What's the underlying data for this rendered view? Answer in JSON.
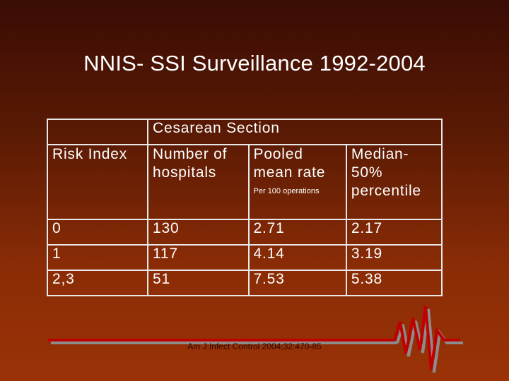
{
  "title": "NNIS- SSI Surveillance 1992-2004",
  "table": {
    "span_header": "Cesarean Section",
    "headers": {
      "risk_index": "Risk Index",
      "hospitals_1": "Number of",
      "hospitals_2": "hospitals",
      "pooled_1": "Pooled",
      "pooled_2": "mean rate",
      "pooled_note": "Per 100 operations",
      "median_1": "Median-",
      "median_2": "50%",
      "median_3": "percentile"
    },
    "rows": [
      {
        "risk_index": "0",
        "hospitals": "130",
        "pooled_mean": "2.71",
        "median": "2.17"
      },
      {
        "risk_index": "1",
        "hospitals": "117",
        "pooled_mean": "4.14",
        "median": "3.19"
      },
      {
        "risk_index": "2,3",
        "hospitals": "51",
        "pooled_mean": "7.53",
        "median": "5.38"
      }
    ]
  },
  "citation": "Am J Infect Control 2004;32:470-85",
  "colors": {
    "background_top": "#3a0c04",
    "background_bottom": "#9a3206",
    "text": "#ffffff",
    "ecg_red": "#c00000",
    "ecg_gray": "#8c8c8c"
  }
}
